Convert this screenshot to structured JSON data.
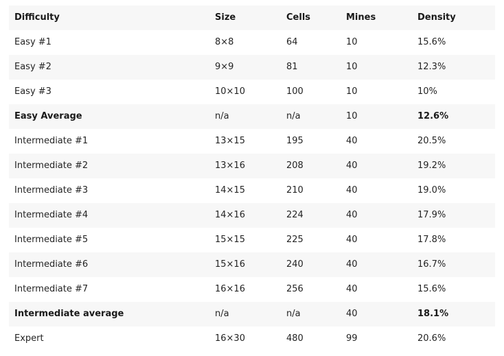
{
  "table": {
    "headers": [
      "Difficulty",
      "Size",
      "Cells",
      "Mines",
      "Density"
    ],
    "rows": [
      {
        "cells": [
          "Easy #1",
          "8×8",
          "64",
          "10",
          "15.6%"
        ],
        "emphasis": false
      },
      {
        "cells": [
          "Easy #2",
          "9×9",
          "81",
          "10",
          "12.3%"
        ],
        "emphasis": false
      },
      {
        "cells": [
          "Easy #3",
          "10×10",
          "100",
          "10",
          "10%"
        ],
        "emphasis": false
      },
      {
        "cells": [
          "Easy Average",
          "n/a",
          "n/a",
          "10",
          "12.6%"
        ],
        "emphasis": true
      },
      {
        "cells": [
          "Intermediate #1",
          "13×15",
          "195",
          "40",
          "20.5%"
        ],
        "emphasis": false
      },
      {
        "cells": [
          "Intermediate #2",
          "13×16",
          "208",
          "40",
          "19.2%"
        ],
        "emphasis": false
      },
      {
        "cells": [
          "Intermediate #3",
          "14×15",
          "210",
          "40",
          "19.0%"
        ],
        "emphasis": false
      },
      {
        "cells": [
          "Intermediate #4",
          "14×16",
          "224",
          "40",
          "17.9%"
        ],
        "emphasis": false
      },
      {
        "cells": [
          "Intermediate #5",
          "15×15",
          "225",
          "40",
          "17.8%"
        ],
        "emphasis": false
      },
      {
        "cells": [
          "Intermediate #6",
          "15×16",
          "240",
          "40",
          "16.7%"
        ],
        "emphasis": false
      },
      {
        "cells": [
          "Intermediate #7",
          "16×16",
          "256",
          "40",
          "15.6%"
        ],
        "emphasis": false
      },
      {
        "cells": [
          "Intermediate average",
          "n/a",
          "n/a",
          "40",
          "18.1%"
        ],
        "emphasis": true
      },
      {
        "cells": [
          "Expert",
          "16×30",
          "480",
          "99",
          "20.6%"
        ],
        "emphasis": false
      }
    ]
  },
  "colors": {
    "stripe": "#f7f7f7",
    "background": "#ffffff",
    "text": "#242424"
  }
}
